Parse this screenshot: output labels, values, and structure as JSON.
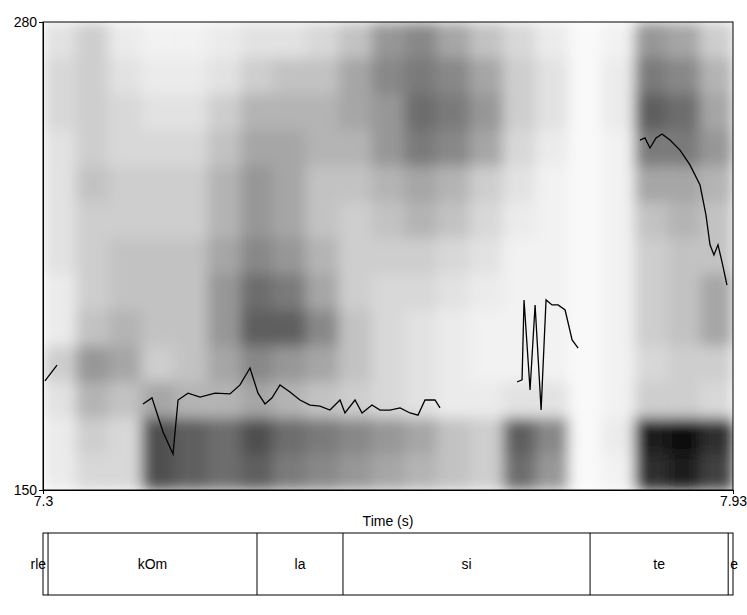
{
  "chart_data": {
    "type": "spectrogram",
    "x_label": "Time (s)",
    "xlim": [
      7.3,
      7.93
    ],
    "ylim": [
      150,
      280
    ],
    "xticks": [
      7.3,
      7.93
    ],
    "yticks": [
      150,
      280
    ],
    "color": "#000000",
    "x": [
      7.3018,
      7.3128,
      7.35,
      7.3913,
      7.3995,
      7.4096,
      7.4187,
      7.4233,
      7.4324,
      7.4434,
      7.4571,
      7.4707,
      7.4799,
      7.489,
      7.4963,
      7.5027,
      7.5091,
      7.5164,
      7.5255,
      7.5346,
      7.5438,
      7.5529,
      7.562,
      7.5712,
      7.5757,
      7.5849,
      7.5913,
      7.6004,
      7.6077,
      7.6168,
      7.626,
      7.6351,
      7.6424,
      7.6488,
      7.6579,
      7.6625,
      7.7,
      7.7328,
      7.7374,
      7.7392,
      7.7447,
      7.7493,
      7.7548,
      7.7593,
      7.7648,
      7.7703,
      7.7767,
      7.7831,
      7.7886,
      7.82,
      7.845,
      7.8496,
      7.8542,
      7.8597,
      7.8652,
      7.8725,
      7.8816,
      7.8907,
      7.8999,
      7.9053,
      7.909,
      7.9126,
      7.9163,
      7.92,
      7.9245
    ],
    "values": [
      180.3,
      184.7,
      null,
      173.9,
      175.6,
      166.1,
      160.0,
      175.0,
      176.9,
      175.8,
      176.9,
      176.7,
      179.2,
      183.9,
      176.9,
      173.9,
      175.6,
      179.2,
      177.2,
      175.0,
      173.6,
      173.3,
      172.2,
      175.0,
      171.4,
      175.0,
      171.4,
      173.6,
      172.2,
      172.2,
      172.8,
      171.4,
      170.8,
      175.0,
      175.0,
      172.8,
      null,
      180.0,
      180.6,
      202.8,
      177.8,
      201.4,
      172.2,
      202.8,
      201.4,
      201.4,
      200.0,
      191.7,
      189.4,
      null,
      247.2,
      247.8,
      245.0,
      247.8,
      248.9,
      247.2,
      244.4,
      240.3,
      234.7,
      226.4,
      218.1,
      215.3,
      218.1,
      213.3,
      206.9
    ],
    "spectrogram": {
      "t_edges": [
        7.3,
        7.33,
        7.36,
        7.39,
        7.42,
        7.45,
        7.48,
        7.51,
        7.54,
        7.57,
        7.6,
        7.63,
        7.66,
        7.69,
        7.72,
        7.75,
        7.78,
        7.81,
        7.84,
        7.87,
        7.9,
        7.93
      ],
      "y_edges": [
        280,
        270,
        260,
        250,
        240,
        230,
        220,
        210,
        200,
        190,
        180,
        170,
        160,
        150
      ],
      "cells": [
        [
          0.2,
          0.3,
          0.15,
          0.1,
          0.1,
          0.15,
          0.2,
          0.2,
          0.25,
          0.35,
          0.5,
          0.55,
          0.45,
          0.35,
          0.25,
          0.15,
          0.05,
          0.1,
          0.5,
          0.45,
          0.3
        ],
        [
          0.25,
          0.3,
          0.2,
          0.15,
          0.15,
          0.2,
          0.3,
          0.35,
          0.35,
          0.45,
          0.55,
          0.6,
          0.55,
          0.45,
          0.3,
          0.2,
          0.05,
          0.15,
          0.6,
          0.55,
          0.4
        ],
        [
          0.25,
          0.3,
          0.25,
          0.2,
          0.2,
          0.3,
          0.4,
          0.4,
          0.4,
          0.45,
          0.5,
          0.65,
          0.6,
          0.5,
          0.3,
          0.2,
          0.05,
          0.15,
          0.7,
          0.65,
          0.45
        ],
        [
          0.2,
          0.3,
          0.25,
          0.25,
          0.25,
          0.35,
          0.45,
          0.45,
          0.4,
          0.4,
          0.5,
          0.6,
          0.55,
          0.45,
          0.25,
          0.15,
          0.05,
          0.1,
          0.6,
          0.6,
          0.5
        ],
        [
          0.2,
          0.35,
          0.3,
          0.3,
          0.3,
          0.4,
          0.5,
          0.45,
          0.35,
          0.35,
          0.4,
          0.45,
          0.4,
          0.3,
          0.2,
          0.1,
          0.05,
          0.1,
          0.45,
          0.45,
          0.4
        ],
        [
          0.2,
          0.3,
          0.3,
          0.3,
          0.3,
          0.4,
          0.5,
          0.45,
          0.35,
          0.3,
          0.35,
          0.4,
          0.35,
          0.25,
          0.15,
          0.1,
          0.05,
          0.1,
          0.35,
          0.4,
          0.35
        ],
        [
          0.2,
          0.3,
          0.35,
          0.35,
          0.35,
          0.45,
          0.55,
          0.5,
          0.4,
          0.3,
          0.3,
          0.3,
          0.25,
          0.2,
          0.1,
          0.1,
          0.05,
          0.1,
          0.3,
          0.35,
          0.35
        ],
        [
          0.15,
          0.3,
          0.35,
          0.35,
          0.35,
          0.5,
          0.65,
          0.6,
          0.45,
          0.3,
          0.25,
          0.25,
          0.2,
          0.15,
          0.1,
          0.1,
          0.05,
          0.1,
          0.3,
          0.35,
          0.45
        ],
        [
          0.15,
          0.35,
          0.4,
          0.35,
          0.35,
          0.5,
          0.7,
          0.7,
          0.55,
          0.35,
          0.25,
          0.2,
          0.15,
          0.1,
          0.1,
          0.1,
          0.05,
          0.1,
          0.3,
          0.35,
          0.45
        ],
        [
          0.3,
          0.5,
          0.45,
          0.3,
          0.35,
          0.45,
          0.55,
          0.5,
          0.45,
          0.35,
          0.25,
          0.2,
          0.15,
          0.1,
          0.1,
          0.1,
          0.05,
          0.1,
          0.25,
          0.3,
          0.3
        ],
        [
          0.2,
          0.4,
          0.35,
          0.45,
          0.4,
          0.4,
          0.45,
          0.4,
          0.35,
          0.3,
          0.25,
          0.2,
          0.15,
          0.15,
          0.2,
          0.2,
          0.05,
          0.1,
          0.3,
          0.3,
          0.25
        ],
        [
          0.15,
          0.3,
          0.25,
          0.75,
          0.7,
          0.65,
          0.75,
          0.65,
          0.6,
          0.55,
          0.5,
          0.45,
          0.35,
          0.3,
          0.7,
          0.55,
          0.05,
          0.15,
          0.9,
          0.95,
          0.85
        ],
        [
          0.15,
          0.25,
          0.25,
          0.75,
          0.7,
          0.65,
          0.7,
          0.6,
          0.55,
          0.5,
          0.45,
          0.4,
          0.35,
          0.3,
          0.65,
          0.5,
          0.05,
          0.1,
          0.85,
          0.9,
          0.8
        ]
      ]
    },
    "tier": {
      "boundaries": [
        7.3046,
        7.4954,
        7.5739,
        7.7995,
        7.9256
      ],
      "labels": [
        "rle",
        "kOm",
        "la",
        "si",
        "te",
        "e"
      ]
    }
  }
}
